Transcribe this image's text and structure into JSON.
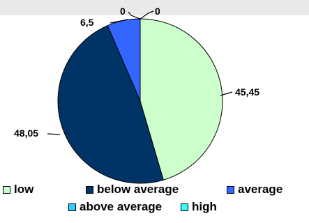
{
  "chart_data": {
    "type": "pie",
    "title": "",
    "categories": [
      "low",
      "below average",
      "average",
      "above average",
      "high"
    ],
    "values": [
      45.45,
      48.05,
      6.5,
      0,
      0
    ],
    "data_labels": [
      "45,45",
      "48,05",
      "6,5",
      "0",
      "0"
    ],
    "colors": [
      "#ccffcc",
      "#003366",
      "#3366ff",
      "#33ccff",
      "#33ffff"
    ],
    "legend_position": "bottom",
    "start_angle": "12 o'clock",
    "direction": "clockwise"
  }
}
